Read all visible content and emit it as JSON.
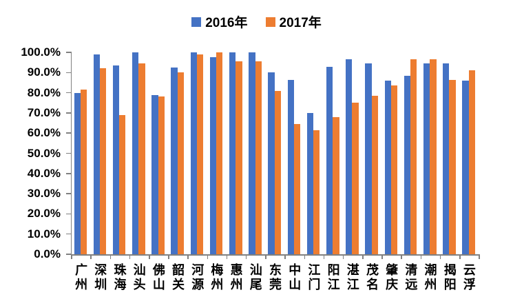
{
  "chart_data": {
    "type": "bar",
    "title": "",
    "xlabel": "",
    "ylabel": "",
    "categories": [
      "广州",
      "深圳",
      "珠海",
      "汕头",
      "佛山",
      "韶关",
      "河源",
      "梅州",
      "惠州",
      "汕尾",
      "东莞",
      "中山",
      "江门",
      "阳江",
      "湛江",
      "茂名",
      "肇庆",
      "清远",
      "潮州",
      "揭阳",
      "云浮"
    ],
    "series": [
      {
        "name": "2016年",
        "color": "#4472C4",
        "values": [
          80.0,
          99.0,
          93.5,
          100.0,
          79.0,
          92.5,
          100.0,
          97.5,
          100.0,
          100.0,
          90.0,
          86.5,
          70.0,
          93.0,
          96.5,
          94.5,
          86.0,
          88.5,
          94.5,
          94.5,
          86.0
        ]
      },
      {
        "name": "2017年",
        "color": "#ED7D31",
        "values": [
          81.5,
          92.0,
          69.0,
          94.5,
          78.0,
          90.0,
          99.0,
          100.0,
          95.5,
          95.5,
          81.0,
          64.5,
          61.5,
          68.0,
          75.0,
          78.5,
          83.5,
          96.5,
          96.5,
          86.5,
          91.0
        ]
      }
    ],
    "ylim": [
      0,
      100
    ],
    "ytick_step": 10,
    "ytick_labels": [
      "0.0%",
      "10.0%",
      "20.0%",
      "30.0%",
      "40.0%",
      "50.0%",
      "60.0%",
      "70.0%",
      "80.0%",
      "90.0%",
      "100.0%"
    ],
    "legend_position": "top-center",
    "grid": false,
    "axis_color": "#808080",
    "text_color": "#000000"
  }
}
